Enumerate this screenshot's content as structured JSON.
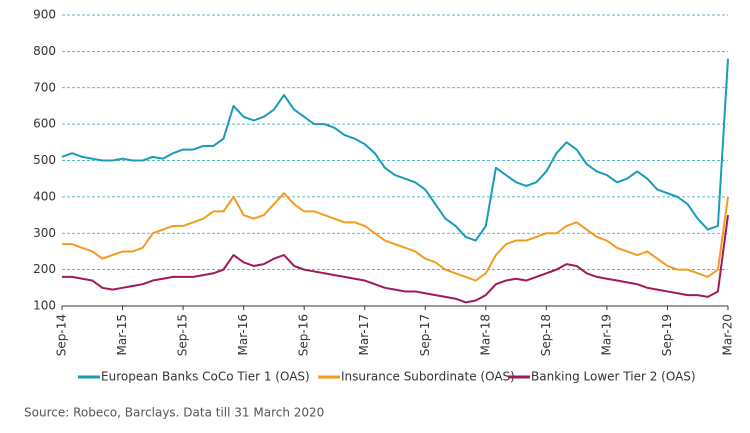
{
  "chart_data": {
    "type": "line",
    "categories": [
      "Sep-14",
      null,
      null,
      null,
      null,
      null,
      "Mar-15",
      null,
      null,
      null,
      null,
      null,
      "Sep-15",
      null,
      null,
      null,
      null,
      null,
      "Mar-16",
      null,
      null,
      null,
      null,
      null,
      "Sep-16",
      null,
      null,
      null,
      null,
      null,
      "Mar-17",
      null,
      null,
      null,
      null,
      null,
      "Sep-17",
      null,
      null,
      null,
      null,
      null,
      "Mar-18",
      null,
      null,
      null,
      null,
      null,
      "Sep-18",
      null,
      null,
      null,
      null,
      null,
      "Mar-19",
      null,
      null,
      null,
      null,
      null,
      "Sep-19",
      null,
      null,
      null,
      null,
      null,
      "Mar-20"
    ],
    "series": [
      {
        "name": "European Banks CoCo Tier 1 (OAS)",
        "color": "#1a9bb7",
        "values": [
          510,
          520,
          510,
          505,
          500,
          500,
          505,
          500,
          500,
          510,
          505,
          520,
          530,
          530,
          540,
          540,
          560,
          650,
          620,
          610,
          620,
          640,
          680,
          640,
          620,
          600,
          600,
          590,
          570,
          560,
          545,
          520,
          480,
          460,
          450,
          440,
          420,
          380,
          340,
          320,
          290,
          280,
          320,
          480,
          460,
          440,
          430,
          440,
          470,
          520,
          550,
          530,
          490,
          470,
          460,
          440,
          450,
          470,
          450,
          420,
          410,
          400,
          380,
          340,
          310,
          320,
          780
        ]
      },
      {
        "name": "Insurance Subordinate (OAS)",
        "color": "#f39c1e",
        "values": [
          270,
          270,
          260,
          250,
          230,
          240,
          250,
          250,
          260,
          300,
          310,
          320,
          320,
          330,
          340,
          360,
          360,
          400,
          350,
          340,
          350,
          380,
          410,
          380,
          360,
          360,
          350,
          340,
          330,
          330,
          320,
          300,
          280,
          270,
          260,
          250,
          230,
          220,
          200,
          190,
          180,
          170,
          190,
          240,
          270,
          280,
          280,
          290,
          300,
          300,
          320,
          330,
          310,
          290,
          280,
          260,
          250,
          240,
          250,
          230,
          210,
          200,
          200,
          190,
          180,
          200,
          400
        ]
      },
      {
        "name": "Banking Lower Tier 2 (OAS)",
        "color": "#a0195e",
        "values": [
          180,
          180,
          175,
          170,
          150,
          145,
          150,
          155,
          160,
          170,
          175,
          180,
          180,
          180,
          185,
          190,
          200,
          240,
          220,
          210,
          215,
          230,
          240,
          210,
          200,
          195,
          190,
          185,
          180,
          175,
          170,
          160,
          150,
          145,
          140,
          140,
          135,
          130,
          125,
          120,
          110,
          115,
          130,
          160,
          170,
          175,
          170,
          180,
          190,
          200,
          215,
          210,
          190,
          180,
          175,
          170,
          165,
          160,
          150,
          145,
          140,
          135,
          130,
          130,
          125,
          140,
          350
        ]
      }
    ],
    "ylim": [
      100,
      900
    ],
    "yticks": [
      100,
      200,
      300,
      400,
      500,
      600,
      700,
      800,
      900
    ],
    "grid": true,
    "source": "Source: Robeco, Barclays. Data till 31 March 2020"
  }
}
